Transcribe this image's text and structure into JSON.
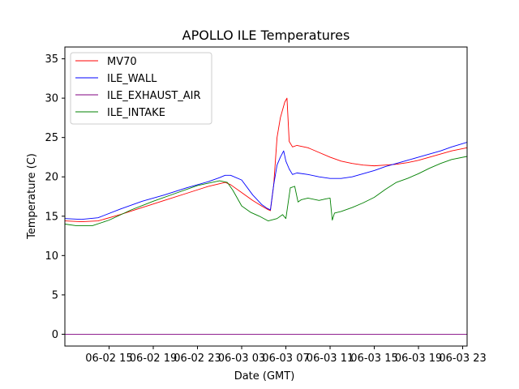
{
  "chart_data": {
    "type": "line",
    "title": "APOLLO ILE Temperatures",
    "xlabel": "Date (GMT)",
    "ylabel": "Temperature (C)",
    "xlim": [
      11.0,
      47.4
    ],
    "ylim": [
      -1.5,
      36.5
    ],
    "x_unit": "hours since 06-02 00:00 GMT",
    "grid": false,
    "legend_position": "top-left",
    "xticks": [
      {
        "value": 15,
        "label": "06-02 15"
      },
      {
        "value": 19,
        "label": "06-02 19"
      },
      {
        "value": 23,
        "label": "06-02 23"
      },
      {
        "value": 27,
        "label": "06-03 03"
      },
      {
        "value": 31,
        "label": "06-03 07"
      },
      {
        "value": 35,
        "label": "06-03 11"
      },
      {
        "value": 39,
        "label": "06-03 15"
      },
      {
        "value": 43,
        "label": "06-03 19"
      },
      {
        "value": 47,
        "label": "06-03 23"
      }
    ],
    "yticks": [
      {
        "value": 0,
        "label": "0"
      },
      {
        "value": 5,
        "label": "5"
      },
      {
        "value": 10,
        "label": "10"
      },
      {
        "value": 15,
        "label": "15"
      },
      {
        "value": 20,
        "label": "20"
      },
      {
        "value": 25,
        "label": "25"
      },
      {
        "value": 30,
        "label": "30"
      },
      {
        "value": 35,
        "label": "35"
      }
    ],
    "series": [
      {
        "name": "MV70",
        "color": "#ff0000",
        "x": [
          11.0,
          12.5,
          14.0,
          16.0,
          18.0,
          20.0,
          22.0,
          24.0,
          25.5,
          26.0,
          27.0,
          28.0,
          28.8,
          29.3,
          29.6,
          29.9,
          30.2,
          30.5,
          30.7,
          30.9,
          31.1,
          31.3,
          31.6,
          32.0,
          33.0,
          34.0,
          35.0,
          36.0,
          37.0,
          38.0,
          39.0,
          40.0,
          41.0,
          42.0,
          43.0,
          44.0,
          45.0,
          46.0,
          47.4
        ],
        "y": [
          14.4,
          14.3,
          14.4,
          15.2,
          16.1,
          17.0,
          17.9,
          18.8,
          19.3,
          19.0,
          18.0,
          17.0,
          16.3,
          15.9,
          15.7,
          19.0,
          25.0,
          27.5,
          28.5,
          29.5,
          30.0,
          24.5,
          23.8,
          24.0,
          23.7,
          23.1,
          22.5,
          22.0,
          21.7,
          21.5,
          21.4,
          21.5,
          21.6,
          21.8,
          22.1,
          22.5,
          22.9,
          23.3,
          23.7
        ]
      },
      {
        "name": "ILE_WALL",
        "color": "#0000ff",
        "x": [
          11.0,
          12.5,
          14.0,
          16.0,
          18.0,
          20.0,
          22.0,
          24.0,
          25.0,
          25.5,
          26.0,
          27.0,
          28.0,
          28.8,
          29.3,
          29.6,
          29.9,
          30.2,
          30.5,
          30.8,
          31.0,
          31.3,
          31.6,
          32.0,
          33.0,
          34.0,
          35.0,
          36.0,
          37.0,
          38.0,
          39.0,
          40.0,
          41.0,
          42.0,
          43.0,
          44.0,
          45.0,
          46.0,
          47.4
        ],
        "y": [
          14.7,
          14.6,
          14.8,
          15.9,
          16.9,
          17.7,
          18.6,
          19.4,
          19.9,
          20.2,
          20.2,
          19.6,
          17.7,
          16.5,
          16.0,
          15.8,
          19.0,
          21.5,
          22.5,
          23.3,
          22.0,
          21.0,
          20.3,
          20.5,
          20.3,
          20.0,
          19.8,
          19.8,
          20.0,
          20.4,
          20.8,
          21.3,
          21.7,
          22.1,
          22.5,
          22.9,
          23.3,
          23.8,
          24.4
        ]
      },
      {
        "name": "ILE_EXHAUST_AIR",
        "color": "#800080",
        "x": [
          11.0,
          47.4
        ],
        "y": [
          0.0,
          0.0
        ]
      },
      {
        "name": "ILE_INTAKE",
        "color": "#008000",
        "x": [
          11.0,
          12.0,
          13.5,
          15.0,
          17.0,
          19.0,
          21.0,
          23.0,
          25.0,
          25.7,
          26.2,
          27.0,
          27.8,
          28.6,
          29.4,
          30.2,
          30.7,
          31.0,
          31.4,
          31.8,
          32.1,
          32.4,
          33.0,
          34.0,
          34.6,
          35.0,
          35.2,
          35.4,
          36.0,
          37.0,
          38.0,
          39.0,
          40.0,
          41.0,
          42.0,
          43.0,
          44.0,
          45.0,
          46.0,
          47.4
        ],
        "y": [
          14.0,
          13.8,
          13.8,
          14.5,
          15.8,
          16.9,
          17.9,
          18.9,
          19.5,
          19.3,
          18.3,
          16.3,
          15.5,
          15.0,
          14.4,
          14.7,
          15.2,
          14.7,
          18.6,
          18.8,
          16.8,
          17.1,
          17.3,
          17.0,
          17.2,
          17.3,
          14.5,
          15.4,
          15.6,
          16.1,
          16.7,
          17.4,
          18.4,
          19.3,
          19.8,
          20.4,
          21.1,
          21.7,
          22.2,
          22.6
        ]
      }
    ]
  }
}
